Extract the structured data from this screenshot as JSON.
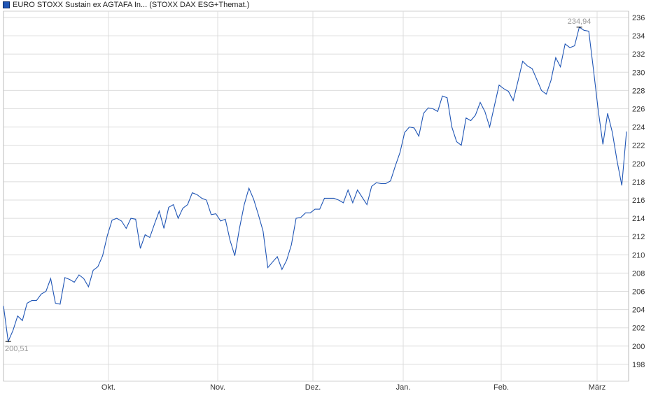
{
  "legend": {
    "label": "EURO STOXX Sustain ex AGTAFA In... (STOXX DAX ESG+Themat.)",
    "color": "#1f55b5"
  },
  "chart_data": {
    "type": "line",
    "title": "",
    "xlabel": "",
    "ylabel": "",
    "ylim": [
      197,
      237
    ],
    "yticks": [
      198,
      200,
      202,
      204,
      206,
      208,
      210,
      212,
      214,
      216,
      218,
      220,
      222,
      224,
      226,
      228,
      230,
      232,
      234,
      236
    ],
    "xticks": [
      "Okt.",
      "Nov.",
      "Dez.",
      "Jan.",
      "Feb.",
      "März"
    ],
    "grid": true,
    "y_axis_position": "right",
    "line_color": "#1f55b5",
    "annotations": {
      "min_label": "200,51",
      "max_label": "234,94"
    },
    "series": [
      {
        "values": [
          204.4,
          200.51,
          201.7,
          203.3,
          202.8,
          204.7,
          205.0,
          205.0,
          205.7,
          206.0,
          207.4,
          204.7,
          204.6,
          207.5,
          207.3,
          207.0,
          207.8,
          207.4,
          206.5,
          208.3,
          208.7,
          209.9,
          212.1,
          213.8,
          214.0,
          213.7,
          212.9,
          214.0,
          213.9,
          210.7,
          212.2,
          211.9,
          213.4,
          214.8,
          212.9,
          215.2,
          215.5,
          214.0,
          215.1,
          215.5,
          216.8,
          216.6,
          216.2,
          216.0,
          214.4,
          214.5,
          213.7,
          213.9,
          211.6,
          209.9,
          212.9,
          215.5,
          217.3,
          216.1,
          214.4,
          212.6,
          208.6,
          209.2,
          209.8,
          208.4,
          209.4,
          211.1,
          214.0,
          214.1,
          214.6,
          214.6,
          215.0,
          215.0,
          216.2,
          216.2,
          216.2,
          216.0,
          215.7,
          217.1,
          215.7,
          217.1,
          216.3,
          215.5,
          217.5,
          217.9,
          217.8,
          217.8,
          218.1,
          219.7,
          221.2,
          223.4,
          224.0,
          223.9,
          223.0,
          225.5,
          226.1,
          226.0,
          225.7,
          227.4,
          227.2,
          224.0,
          222.4,
          222.0,
          225.0,
          224.7,
          225.3,
          226.7,
          225.7,
          224.0,
          226.3,
          228.6,
          228.2,
          227.9,
          226.9,
          229.0,
          231.2,
          230.7,
          230.4,
          229.2,
          228.0,
          227.6,
          229.1,
          231.6,
          230.6,
          233.1,
          232.7,
          232.9,
          234.94,
          234.6,
          234.5,
          230.3,
          225.9,
          222.1,
          225.5,
          223.4,
          220.3,
          217.6,
          223.5
        ]
      }
    ]
  }
}
